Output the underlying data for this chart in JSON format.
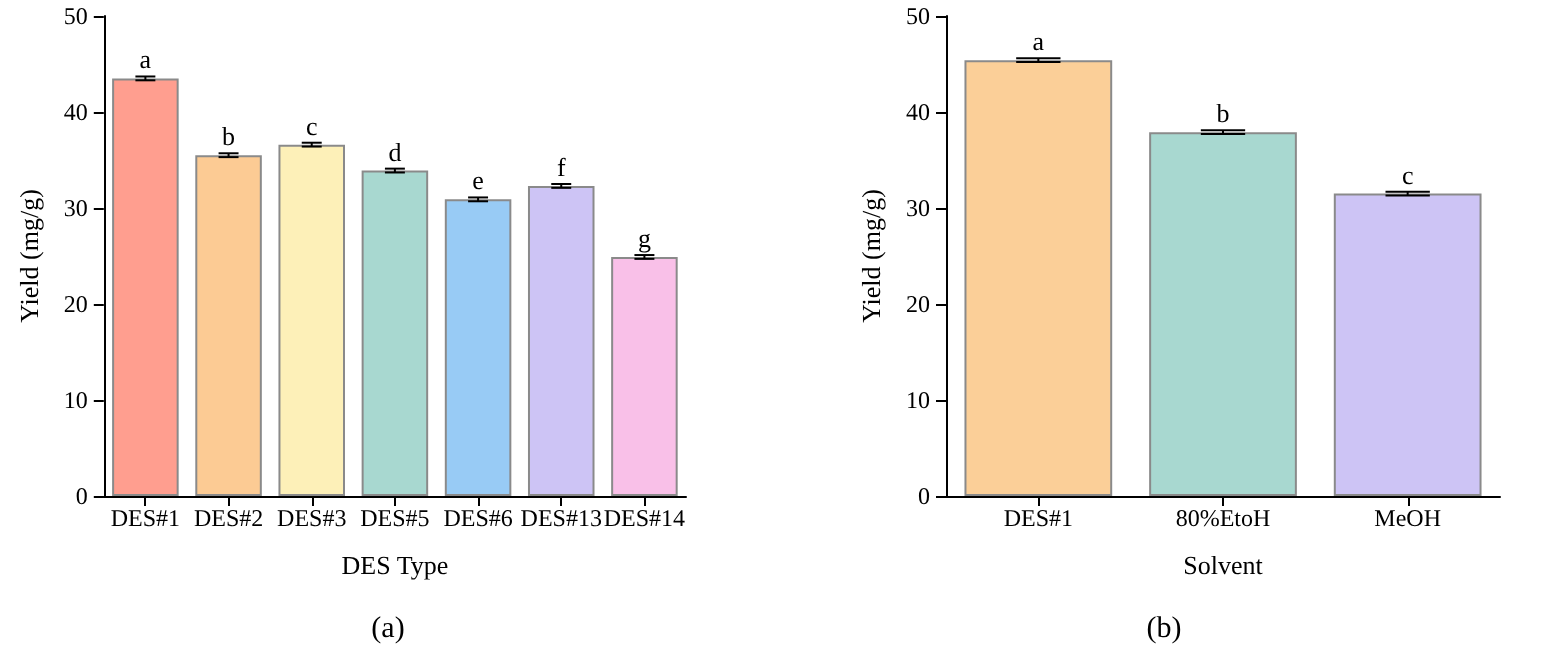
{
  "chart_data": [
    {
      "type": "bar",
      "title": "(a)",
      "xlabel": "DES Type",
      "ylabel": "Yield (mg/g)",
      "categories": [
        "DES#1",
        "DES#2",
        "DES#3",
        "DES#5",
        "DES#6",
        "DES#13",
        "DES#14"
      ],
      "values": [
        43.5,
        35.5,
        36.6,
        33.9,
        30.9,
        32.3,
        24.9
      ],
      "errors": [
        0.2,
        0.2,
        0.2,
        0.2,
        0.2,
        0.2,
        0.2
      ],
      "colors": [
        "#ff9e8f",
        "#fccb94",
        "#fdf0b8",
        "#a8d8d0",
        "#98cbf5",
        "#cdc4f5",
        "#f9c0e8"
      ],
      "ylim": [
        0,
        50
      ],
      "yticks": [
        0,
        10,
        20,
        30,
        40,
        50
      ],
      "grid": false,
      "annotations": [
        {
          "text": "a",
          "x": "DES#1",
          "y": 43.7
        },
        {
          "text": "b",
          "x": "DES#2",
          "y": 35.7
        },
        {
          "text": "c",
          "x": "DES#3",
          "y": 36.8
        },
        {
          "text": "d",
          "x": "DES#5",
          "y": 34.1
        },
        {
          "text": "e",
          "x": "DES#6",
          "y": 31.1
        },
        {
          "text": "f",
          "x": "DES#13",
          "y": 32.5
        },
        {
          "text": "g",
          "x": "DES#14",
          "y": 25.1
        }
      ]
    },
    {
      "type": "bar",
      "title": "(b)",
      "xlabel": "Solvent",
      "ylabel": "Yield (mg/g)",
      "categories": [
        "DES#1",
        "80%EtoH",
        "MeOH"
      ],
      "values": [
        45.4,
        37.9,
        31.5
      ],
      "errors": [
        0.2,
        0.2,
        0.2
      ],
      "colors": [
        "#fbcf98",
        "#a8d8d0",
        "#cdc4f5"
      ],
      "ylim": [
        0,
        50
      ],
      "yticks": [
        0,
        10,
        20,
        30,
        40,
        50
      ],
      "grid": false,
      "annotations": [
        {
          "text": "a",
          "x": "DES#1",
          "y": 45.6
        },
        {
          "text": "b",
          "x": "80%EtoH",
          "y": 38.1
        },
        {
          "text": "c",
          "x": "MeOH",
          "y": 31.7
        }
      ]
    }
  ]
}
